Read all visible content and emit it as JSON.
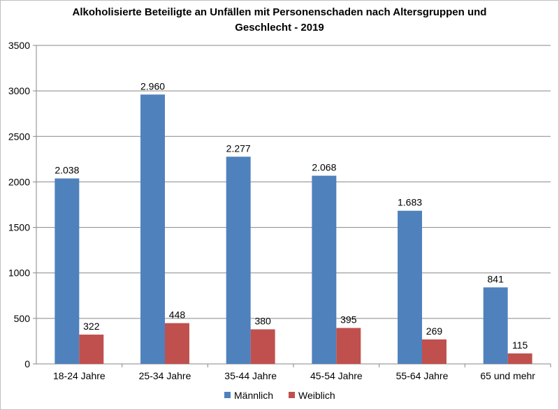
{
  "chart_data": {
    "type": "bar",
    "title": "Alkoholisierte Beteiligte an Unfällen mit Personenschaden nach Altersgruppen und Geschlecht - 2019",
    "title_lines": [
      "Alkoholisierte Beteiligte an Unfällen mit Personenschaden nach Altersgruppen und",
      "Geschlecht - 2019"
    ],
    "categories": [
      "18-24 Jahre",
      "25-34 Jahre",
      "35-44 Jahre",
      "45-54 Jahre",
      "55-64 Jahre",
      "65 und mehr"
    ],
    "series": [
      {
        "name": "Männlich",
        "color": "#4f81bd",
        "values": [
          2038,
          2960,
          2277,
          2068,
          1683,
          841
        ],
        "labels": [
          "2.038",
          "2.960",
          "2.277",
          "2.068",
          "1.683",
          "841"
        ]
      },
      {
        "name": "Weiblich",
        "color": "#c0504d",
        "values": [
          322,
          448,
          380,
          395,
          269,
          115
        ],
        "labels": [
          "322",
          "448",
          "380",
          "395",
          "269",
          "115"
        ]
      }
    ],
    "ylim": [
      0,
      3500
    ],
    "yticks": [
      "0",
      "500",
      "1000",
      "1500",
      "2000",
      "2500",
      "3000",
      "3500"
    ],
    "grid": true,
    "legend_position": "bottom"
  }
}
